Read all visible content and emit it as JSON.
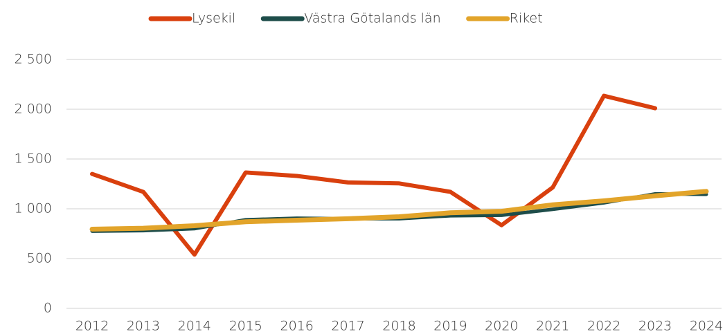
{
  "chart_data": {
    "type": "line",
    "categories": [
      "2012",
      "2013",
      "2014",
      "2015",
      "2016",
      "2017",
      "2018",
      "2019",
      "2020",
      "2021",
      "2022",
      "2023",
      "2024"
    ],
    "series": [
      {
        "name": "Lysekil",
        "color": "#d9400e",
        "values": [
          1350,
          1170,
          540,
          1365,
          1330,
          1265,
          1255,
          1170,
          835,
          1215,
          2135,
          2010,
          null
        ]
      },
      {
        "name": "Västra Götalands län",
        "color": "#1e4d4a",
        "values": [
          775,
          780,
          800,
          890,
          905,
          900,
          900,
          930,
          935,
          995,
          1060,
          1150,
          1145
        ]
      },
      {
        "name": "Riket",
        "color": "#e2a42a",
        "values": [
          795,
          805,
          830,
          870,
          885,
          900,
          920,
          960,
          975,
          1040,
          1080,
          1130,
          1175
        ]
      }
    ],
    "ylim": [
      0,
      2500
    ],
    "yticks": [
      0,
      500,
      {
        "value": 1000,
        "label": "1 000"
      },
      {
        "value": 1500,
        "label": "1 500"
      },
      {
        "value": 2000,
        "label": "2 000"
      },
      {
        "value": 2500,
        "label": "2 500"
      }
    ],
    "grid": true,
    "legend": "top"
  }
}
